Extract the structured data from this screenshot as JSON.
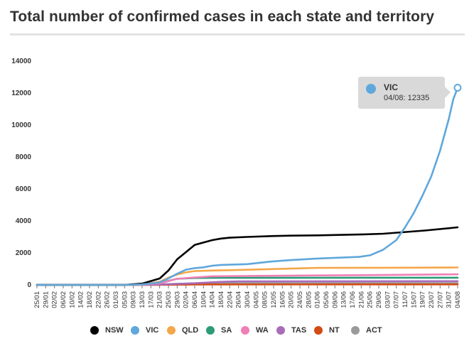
{
  "title": "Total number of confirmed cases in each state and territory",
  "tooltip": {
    "series": "VIC",
    "text": "04/08: 12335"
  },
  "chart_data": {
    "type": "line",
    "title": "Total number of confirmed cases in each state and territory",
    "xlabel": "",
    "ylabel": "",
    "ylim": [
      0,
      14000
    ],
    "yticks": [
      "0",
      "2000",
      "4000",
      "6000",
      "8000",
      "10000",
      "12000",
      "14000"
    ],
    "x_start": "25/01",
    "x_end": "04/08",
    "x_tick_labels": [
      "25/01",
      "29/01",
      "02/02",
      "06/02",
      "10/02",
      "14/02",
      "18/02",
      "22/02",
      "26/02",
      "01/03",
      "05/03",
      "09/03",
      "13/03",
      "17/03",
      "21/03",
      "25/03",
      "29/03",
      "02/04",
      "06/04",
      "10/04",
      "14/04",
      "18/04",
      "22/04",
      "26/04",
      "30/04",
      "04/05",
      "08/05",
      "12/05",
      "16/05",
      "20/05",
      "24/05",
      "28/05",
      "01/06",
      "05/06",
      "09/06",
      "13/06",
      "17/06",
      "21/06",
      "25/06",
      "29/06",
      "03/07",
      "07/07",
      "11/07",
      "15/07",
      "19/07",
      "23/07",
      "27/07",
      "31/07",
      "04/08"
    ],
    "grid": false,
    "legend_position": "bottom",
    "series": [
      {
        "name": "NSW",
        "color": "#000000",
        "dates": [
          "25/01",
          "05/03",
          "13/03",
          "21/03",
          "25/03",
          "29/03",
          "02/04",
          "06/04",
          "10/04",
          "14/04",
          "18/04",
          "22/04",
          "30/04",
          "10/05",
          "20/05",
          "01/06",
          "20/06",
          "01/07",
          "20/07",
          "04/08"
        ],
        "values": [
          0,
          0,
          80,
          400,
          900,
          1600,
          2050,
          2500,
          2650,
          2800,
          2900,
          2950,
          3000,
          3050,
          3080,
          3100,
          3150,
          3200,
          3400,
          3600
        ]
      },
      {
        "name": "VIC",
        "color": "#5fa7dc",
        "dates": [
          "25/01",
          "05/03",
          "13/03",
          "21/03",
          "25/03",
          "29/03",
          "02/04",
          "06/04",
          "10/04",
          "14/04",
          "18/04",
          "30/04",
          "10/05",
          "20/05",
          "01/06",
          "20/06",
          "25/06",
          "01/07",
          "07/07",
          "11/07",
          "15/07",
          "19/07",
          "23/07",
          "27/07",
          "31/07",
          "02/08",
          "04/08"
        ],
        "values": [
          0,
          0,
          30,
          150,
          400,
          700,
          950,
          1050,
          1100,
          1200,
          1250,
          1300,
          1450,
          1550,
          1650,
          1750,
          1850,
          2200,
          2800,
          3600,
          4500,
          5600,
          6800,
          8400,
          10400,
          11600,
          12335
        ]
      },
      {
        "name": "QLD",
        "color": "#f5a74a",
        "dates": [
          "25/01",
          "05/03",
          "13/03",
          "21/03",
          "25/03",
          "29/03",
          "02/04",
          "06/04",
          "14/04",
          "22/04",
          "01/06",
          "01/07",
          "04/08"
        ],
        "values": [
          0,
          0,
          30,
          200,
          450,
          650,
          780,
          860,
          900,
          920,
          1060,
          1070,
          1090
        ]
      },
      {
        "name": "SA",
        "color": "#2c9b78",
        "dates": [
          "25/01",
          "05/03",
          "13/03",
          "21/03",
          "25/03",
          "29/03",
          "06/04",
          "14/04",
          "04/08"
        ],
        "values": [
          0,
          0,
          20,
          100,
          250,
          380,
          430,
          440,
          450
        ]
      },
      {
        "name": "WA",
        "color": "#ef80b6",
        "dates": [
          "25/01",
          "05/03",
          "13/03",
          "21/03",
          "25/03",
          "29/03",
          "06/04",
          "14/04",
          "01/06",
          "01/07",
          "04/08"
        ],
        "values": [
          0,
          0,
          20,
          100,
          230,
          380,
          460,
          540,
          590,
          620,
          660
        ]
      },
      {
        "name": "TAS",
        "color": "#a86cba",
        "dates": [
          "25/01",
          "05/03",
          "17/03",
          "25/03",
          "02/04",
          "10/04",
          "18/04",
          "26/04",
          "04/08"
        ],
        "values": [
          0,
          0,
          10,
          40,
          80,
          130,
          190,
          220,
          229
        ]
      },
      {
        "name": "NT",
        "color": "#d24b12",
        "dates": [
          "25/01",
          "05/03",
          "21/03",
          "29/03",
          "06/04",
          "04/08"
        ],
        "values": [
          0,
          0,
          5,
          15,
          27,
          33
        ]
      },
      {
        "name": "ACT",
        "color": "#9a9a9a",
        "dates": [
          "25/01",
          "05/03",
          "21/03",
          "29/03",
          "06/04",
          "04/08"
        ],
        "values": [
          0,
          0,
          20,
          70,
          100,
          113
        ]
      }
    ]
  }
}
